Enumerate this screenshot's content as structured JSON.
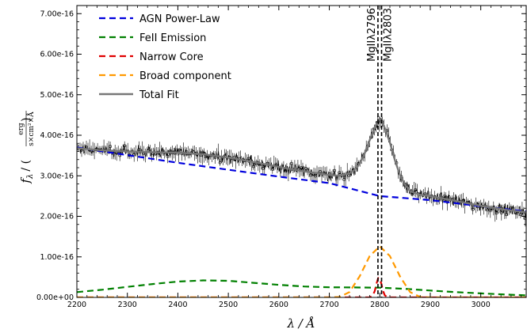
{
  "chart_data": {
    "type": "line",
    "xlabel": "λ / Å",
    "ylabel": {
      "symbol": "f",
      "subscript": "λ",
      "prefix": "/ (",
      "num": "erg",
      "den": "s×cm²×Å",
      "suffix": ")"
    },
    "xlim": [
      2200,
      3090
    ],
    "ylim": [
      0,
      7.2e-16
    ],
    "x_ticks": [
      2200,
      2300,
      2400,
      2500,
      2600,
      2700,
      2800,
      2900,
      3000
    ],
    "x_tick_labels": [
      "2200",
      "2300",
      "2400",
      "2500",
      "2600",
      "2700",
      "2800",
      "2900",
      "3000"
    ],
    "y_ticks": [
      0,
      1e-16,
      2e-16,
      3e-16,
      4e-16,
      5e-16,
      6e-16,
      7e-16
    ],
    "y_tick_labels": [
      "0.00e+00",
      "1.00e-16",
      "2.00e-16",
      "3.00e-16",
      "4.00e-16",
      "5.00e-16",
      "6.00e-16",
      "7.00e-16"
    ],
    "grid": false,
    "legend": "top-left",
    "series": [
      {
        "name": "AGN Power-Law",
        "color": "#0000dd",
        "style": "dashed",
        "x": [
          2200,
          2300,
          2400,
          2500,
          2600,
          2700,
          2800,
          2900,
          3000,
          3090
        ],
        "y": [
          3.7e-16,
          3.51e-16,
          3.32e-16,
          3.15e-16,
          2.98e-16,
          2.82e-16,
          2.5e-16,
          2.4e-16,
          2.25e-16,
          2.12e-16
        ]
      },
      {
        "name": "FeII Emission",
        "color": "#008000",
        "style": "dashed",
        "x": [
          2200,
          2250,
          2300,
          2350,
          2400,
          2450,
          2500,
          2550,
          2600,
          2650,
          2700,
          2750,
          2800,
          2850,
          2900,
          2950,
          3000,
          3050,
          3090
        ],
        "y": [
          1.3e-17,
          1.9e-17,
          2.6e-17,
          3.3e-17,
          3.9e-17,
          4.2e-17,
          4.1e-17,
          3.6e-17,
          3.1e-17,
          2.7e-17,
          2.5e-17,
          2.45e-17,
          2.4e-17,
          2.1e-17,
          1.7e-17,
          1.3e-17,
          1e-17,
          7e-18,
          5e-18
        ]
      },
      {
        "name": "Narrow Core",
        "color": "#e00000",
        "style": "dashed",
        "x": [
          2200,
          2780,
          2786,
          2790,
          2794,
          2797,
          2800,
          2803,
          2806,
          2810,
          2816,
          3090
        ],
        "y": [
          0,
          0,
          4e-18,
          1.6e-17,
          3.6e-17,
          4.8e-17,
          4.6e-17,
          3.4e-17,
          1.7e-17,
          5e-18,
          0,
          0
        ]
      },
      {
        "name": "Broad component",
        "color": "#ff9900",
        "style": "dashed",
        "x": [
          2200,
          2700,
          2720,
          2740,
          2760,
          2780,
          2800,
          2820,
          2840,
          2860,
          2880,
          2900,
          3090
        ],
        "y": [
          0,
          0,
          1e-18,
          1.3e-17,
          5.2e-17,
          1.02e-16,
          1.26e-16,
          1.02e-16,
          5.2e-17,
          1.3e-17,
          1e-18,
          0,
          0
        ]
      },
      {
        "name": "Total Fit",
        "color": "#777777",
        "style": "solid",
        "x": [
          2200,
          2250,
          2300,
          2350,
          2400,
          2450,
          2500,
          2550,
          2600,
          2650,
          2700,
          2720,
          2740,
          2750,
          2760,
          2770,
          2780,
          2790,
          2800,
          2810,
          2820,
          2830,
          2840,
          2850,
          2860,
          2880,
          2900,
          2950,
          3000,
          3050,
          3090
        ],
        "y": [
          3.68e-16,
          3.63e-16,
          3.6e-16,
          3.58e-16,
          3.57e-16,
          3.53e-16,
          3.45e-16,
          3.34e-16,
          3.22e-16,
          3.11e-16,
          3.02e-16,
          3e-16,
          3.06e-16,
          3.15e-16,
          3.3e-16,
          3.55e-16,
          3.88e-16,
          4.2e-16,
          4.42e-16,
          4.18e-16,
          3.82e-16,
          3.38e-16,
          3.02e-16,
          2.78e-16,
          2.62e-16,
          2.53e-16,
          2.5e-16,
          2.38e-16,
          2.26e-16,
          2.16e-16,
          2.1e-16
        ]
      }
    ],
    "vlines": [
      {
        "label": "MgIIλ2796",
        "x": 2796.35,
        "color": "#000000",
        "style": "dashed"
      },
      {
        "label": "MgIIλ2803",
        "x": 2803.53,
        "color": "#000000",
        "style": "dashed"
      }
    ],
    "observed_data": {
      "color": "#000000",
      "x_range": [
        2200,
        3090
      ],
      "y_scale": 1e-16
    }
  }
}
